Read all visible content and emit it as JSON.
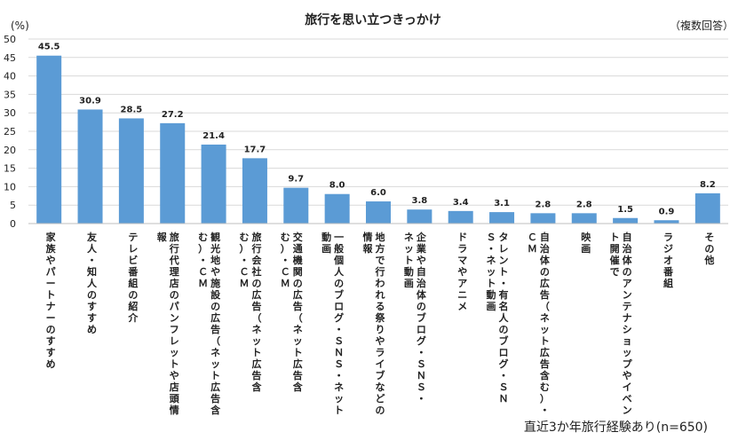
{
  "chart_data": {
    "type": "bar",
    "title": "旅行を思い立つきっかけ",
    "unit_label": "(%)",
    "note": "（複数回答）",
    "footer": "直近3か年旅行経験あり(n=650)",
    "ylim": [
      0,
      50
    ],
    "yticks": [
      0,
      5,
      10,
      15,
      20,
      25,
      30,
      35,
      40,
      45,
      50
    ],
    "grid": true,
    "bar_color": "#5b9bd5",
    "categories": [
      [
        "家族やパートナーのすすめ"
      ],
      [
        "友人・知人のすすめ"
      ],
      [
        "テレビ番組の紹介"
      ],
      [
        "旅行代理店のパンフレットや店頭情",
        "報"
      ],
      [
        "観光地や施設の広告（ネット広告含",
        "む）・ＣＭ"
      ],
      [
        "旅行会社の広告（ネット広告含",
        "む）・ＣＭ"
      ],
      [
        "交通機関の広告（ネット広告含",
        "む）・ＣＭ"
      ],
      [
        "一般個人のブログ・ＳＮＳ・ネット",
        "動画"
      ],
      [
        "地方で行われる祭りやライブなどの",
        "情報"
      ],
      [
        "企業や自治体のブログ・ＳＮＳ・",
        "ネット動画"
      ],
      [
        "ドラマやアニメ"
      ],
      [
        "タレント・有名人のブログ・ＳＮ",
        "Ｓ・ネット動画"
      ],
      [
        "自治体の広告（ネット広告含む）・",
        "ＣＭ"
      ],
      [
        "映画"
      ],
      [
        "自治体のアンテナショップやイベン",
        "ト開催で"
      ],
      [
        "ラジオ番組"
      ],
      [
        "その他"
      ]
    ],
    "values": [
      45.5,
      30.9,
      28.5,
      27.2,
      21.4,
      17.7,
      9.7,
      8.0,
      6.0,
      3.8,
      3.4,
      3.1,
      2.8,
      2.8,
      1.5,
      0.9,
      8.2
    ],
    "value_labels": [
      "45.5",
      "30.9",
      "28.5",
      "27.2",
      "21.4",
      "17.7",
      "9.7",
      "8.0",
      "6.0",
      "3.8",
      "3.4",
      "3.1",
      "2.8",
      "2.8",
      "1.5",
      "0.9",
      "8.2"
    ]
  }
}
